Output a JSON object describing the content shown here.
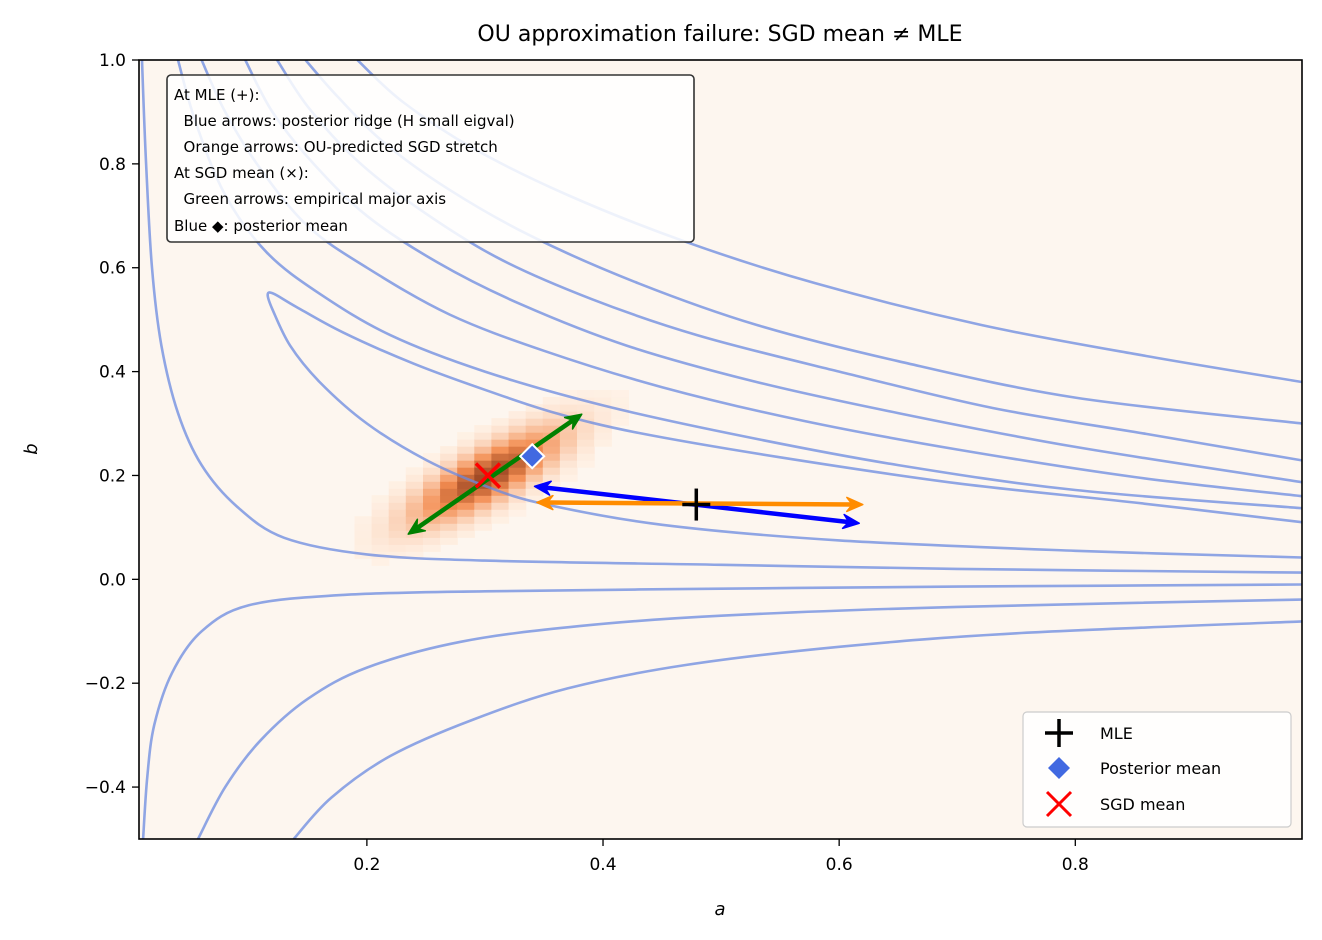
{
  "chart_data": {
    "type": "heatmap",
    "title": "OU approximation failure: SGD mean ≠ MLE",
    "xlabel": "a",
    "ylabel": "b",
    "xlim": [
      0.007,
      0.992
    ],
    "ylim": [
      -0.5,
      1.0
    ],
    "xticks": [
      0.2,
      0.4,
      0.6,
      0.8
    ],
    "xtick_labels": [
      "0.2",
      "0.4",
      "0.6",
      "0.8"
    ],
    "yticks": [
      -0.4,
      -0.2,
      0.0,
      0.2,
      0.4,
      0.6,
      0.8,
      1.0
    ],
    "ytick_labels": [
      "−0.4",
      "−0.2",
      "0.0",
      "0.2",
      "0.4",
      "0.6",
      "0.8",
      "1.0"
    ],
    "grid": false,
    "background_color": "#fdf6ef",
    "heatmap": {
      "description": "SGD iterate density histogram (Oranges colormap)",
      "center": [
        0.3025,
        0.2
      ],
      "major_axis_direction": [
        0.147,
        0.231
      ],
      "spread_major": 0.07,
      "spread_minor": 0.022,
      "bin_size": [
        0.0145,
        0.0135
      ],
      "colormap_low": "#fff5eb",
      "colormap_high": "#a04a25"
    },
    "contours": {
      "description": "Posterior log-density contours",
      "color": "#6a8ae0",
      "opacity": 0.75,
      "lines": [
        {
          "name": "contour-1",
          "points": [
            [
              0.0095,
              1.0
            ],
            [
              0.013,
              0.8
            ],
            [
              0.018,
              0.6
            ],
            [
              0.026,
              0.45
            ],
            [
              0.04,
              0.32
            ],
            [
              0.06,
              0.22
            ],
            [
              0.09,
              0.14
            ],
            [
              0.13,
              0.08
            ],
            [
              0.2,
              0.048
            ],
            [
              0.3,
              0.036
            ],
            [
              0.5,
              0.028
            ],
            [
              0.7,
              0.02
            ],
            [
              0.992,
              0.013
            ]
          ]
        },
        {
          "name": "contour-loop",
          "points": [
            [
              0.992,
              0.042
            ],
            [
              0.8,
              0.055
            ],
            [
              0.6,
              0.075
            ],
            [
              0.45,
              0.105
            ],
            [
              0.35,
              0.145
            ],
            [
              0.3,
              0.18
            ],
            [
              0.25,
              0.23
            ],
            [
              0.2,
              0.3
            ],
            [
              0.16,
              0.38
            ],
            [
              0.135,
              0.45
            ],
            [
              0.12,
              0.52
            ],
            [
              0.116,
              0.548
            ],
            [
              0.121,
              0.55
            ],
            [
              0.14,
              0.525
            ],
            [
              0.18,
              0.475
            ],
            [
              0.24,
              0.415
            ],
            [
              0.3,
              0.365
            ],
            [
              0.36,
              0.32
            ],
            [
              0.43,
              0.282
            ],
            [
              0.55,
              0.235
            ],
            [
              0.7,
              0.185
            ],
            [
              0.85,
              0.148
            ],
            [
              0.992,
              0.11
            ]
          ]
        },
        {
          "name": "contour-2",
          "points": [
            [
              0.04,
              1.0
            ],
            [
              0.055,
              0.88
            ],
            [
              0.08,
              0.74
            ],
            [
              0.115,
              0.63
            ],
            [
              0.16,
              0.55
            ],
            [
              0.22,
              0.47
            ],
            [
              0.3,
              0.4
            ],
            [
              0.4,
              0.335
            ],
            [
              0.52,
              0.275
            ],
            [
              0.65,
              0.22
            ],
            [
              0.8,
              0.172
            ],
            [
              0.992,
              0.137
            ]
          ]
        },
        {
          "name": "contour-3",
          "points": [
            [
              0.06,
              1.0
            ],
            [
              0.08,
              0.9
            ],
            [
              0.11,
              0.79
            ],
            [
              0.15,
              0.68
            ],
            [
              0.2,
              0.6
            ],
            [
              0.27,
              0.51
            ],
            [
              0.35,
              0.44
            ],
            [
              0.45,
              0.37
            ],
            [
              0.57,
              0.305
            ],
            [
              0.7,
              0.25
            ],
            [
              0.85,
              0.197
            ],
            [
              0.992,
              0.16
            ]
          ]
        },
        {
          "name": "contour-4",
          "points": [
            [
              0.097,
              1.0
            ],
            [
              0.12,
              0.9
            ],
            [
              0.155,
              0.8
            ],
            [
              0.2,
              0.7
            ],
            [
              0.26,
              0.61
            ],
            [
              0.33,
              0.53
            ],
            [
              0.42,
              0.45
            ],
            [
              0.53,
              0.38
            ],
            [
              0.65,
              0.32
            ],
            [
              0.8,
              0.255
            ],
            [
              0.992,
              0.187
            ]
          ]
        },
        {
          "name": "contour-5",
          "points": [
            [
              0.124,
              1.0
            ],
            [
              0.15,
              0.91
            ],
            [
              0.19,
              0.81
            ],
            [
              0.24,
              0.72
            ],
            [
              0.31,
              0.62
            ],
            [
              0.39,
              0.54
            ],
            [
              0.48,
              0.47
            ],
            [
              0.6,
              0.4
            ],
            [
              0.73,
              0.33
            ],
            [
              0.86,
              0.28
            ],
            [
              0.992,
              0.229
            ]
          ]
        },
        {
          "name": "contour-6",
          "points": [
            [
              0.148,
              1.0
            ],
            [
              0.175,
              0.93
            ],
            [
              0.215,
              0.84
            ],
            [
              0.27,
              0.75
            ],
            [
              0.34,
              0.66
            ],
            [
              0.43,
              0.57
            ],
            [
              0.53,
              0.49
            ],
            [
              0.65,
              0.42
            ],
            [
              0.8,
              0.35
            ],
            [
              0.992,
              0.3
            ]
          ]
        },
        {
          "name": "contour-7",
          "points": [
            [
              0.192,
              1.0
            ],
            [
              0.23,
              0.92
            ],
            [
              0.29,
              0.83
            ],
            [
              0.37,
              0.74
            ],
            [
              0.47,
              0.65
            ],
            [
              0.58,
              0.57
            ],
            [
              0.72,
              0.49
            ],
            [
              0.86,
              0.43
            ],
            [
              0.992,
              0.38
            ]
          ]
        },
        {
          "name": "contour-8",
          "points": [
            [
              0.0105,
              -0.5
            ],
            [
              0.014,
              -0.38
            ],
            [
              0.02,
              -0.28
            ],
            [
              0.035,
              -0.18
            ],
            [
              0.06,
              -0.1
            ],
            [
              0.1,
              -0.05
            ],
            [
              0.18,
              -0.03
            ],
            [
              0.3,
              -0.023
            ],
            [
              0.5,
              -0.018
            ],
            [
              0.7,
              -0.014
            ],
            [
              0.992,
              -0.01
            ]
          ]
        },
        {
          "name": "contour-9",
          "points": [
            [
              0.057,
              -0.5
            ],
            [
              0.08,
              -0.4
            ],
            [
              0.11,
              -0.31
            ],
            [
              0.15,
              -0.23
            ],
            [
              0.2,
              -0.17
            ],
            [
              0.28,
              -0.12
            ],
            [
              0.38,
              -0.09
            ],
            [
              0.5,
              -0.07
            ],
            [
              0.7,
              -0.053
            ],
            [
              0.992,
              -0.039
            ]
          ]
        },
        {
          "name": "contour-10",
          "points": [
            [
              0.138,
              -0.5
            ],
            [
              0.17,
              -0.42
            ],
            [
              0.22,
              -0.34
            ],
            [
              0.29,
              -0.27
            ],
            [
              0.37,
              -0.21
            ],
            [
              0.47,
              -0.165
            ],
            [
              0.6,
              -0.13
            ],
            [
              0.75,
              -0.104
            ],
            [
              0.992,
              -0.081
            ]
          ]
        }
      ]
    },
    "arrows": [
      {
        "name": "blue-arrows",
        "label": "posterior ridge (H small eigval)",
        "color": "#0000ff",
        "center": [
          0.479,
          0.144
        ],
        "start": [
          0.342,
          0.179
        ],
        "end": [
          0.617,
          0.108
        ],
        "double_headed": true
      },
      {
        "name": "orange-arrows",
        "label": "OU-predicted SGD stretch",
        "color": "#ff8c00",
        "center": [
          0.479,
          0.144
        ],
        "start": [
          0.344,
          0.148
        ],
        "end": [
          0.62,
          0.144
        ],
        "double_headed": true
      },
      {
        "name": "green-arrows",
        "label": "empirical major axis",
        "color": "#008000",
        "center": [
          0.3025,
          0.2
        ],
        "start": [
          0.235,
          0.087
        ],
        "end": [
          0.382,
          0.318
        ],
        "double_headed": true
      }
    ],
    "markers": [
      {
        "name": "MLE",
        "label": "MLE",
        "symbol": "plus",
        "color": "#000000",
        "a": 0.479,
        "b": 0.144
      },
      {
        "name": "posterior-mean",
        "label": "Posterior mean",
        "symbol": "diamond",
        "color": "#4169e1",
        "edge": "#ffffff",
        "a": 0.34,
        "b": 0.237
      },
      {
        "name": "SGD-mean",
        "label": "SGD mean",
        "symbol": "x",
        "color": "#ff0000",
        "a": 0.3025,
        "b": 0.2
      }
    ],
    "annotation": {
      "lines": [
        "At MLE (+):",
        "  Blue arrows: posterior ridge (H small eigval)",
        "  Orange arrows: OU-predicted SGD stretch",
        "At SGD mean (×):",
        "  Green arrows: empirical major axis",
        "Blue ◆: posterior mean"
      ],
      "placement": "top-left"
    },
    "legend": {
      "placement": "bottom-right",
      "entries": [
        {
          "label": "MLE",
          "symbol": "plus",
          "color": "#000000"
        },
        {
          "label": "Posterior mean",
          "symbol": "diamond",
          "color": "#4169e1"
        },
        {
          "label": "SGD mean",
          "symbol": "x",
          "color": "#ff0000"
        }
      ]
    }
  }
}
